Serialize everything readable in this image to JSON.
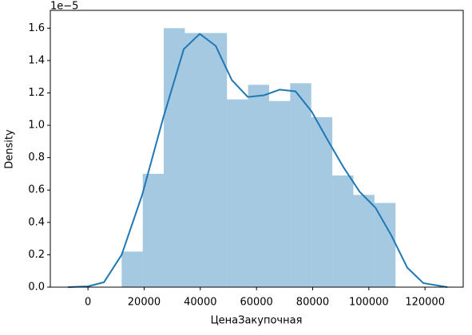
{
  "chart_data": {
    "type": "histogram",
    "x_label": "ЦенаЗакупочная",
    "y_label": "Density",
    "y_offset_label": "1e−5",
    "color": "#1f77b4",
    "bins": [
      12000,
      19500,
      27000,
      34500,
      42000,
      49500,
      57000,
      64500,
      72000,
      79500,
      87000,
      94500,
      102000,
      109500
    ],
    "values": [
      0.22,
      0.7,
      1.6,
      1.57,
      1.57,
      1.16,
      1.25,
      1.15,
      1.26,
      1.05,
      0.69,
      0.57,
      0.52
    ],
    "kde": {
      "color": "#1f77b4",
      "x": [
        -7100,
        0,
        5700,
        12000,
        19300,
        26700,
        34100,
        39800,
        45500,
        51200,
        56900,
        62600,
        68200,
        73900,
        79600,
        85300,
        91000,
        96700,
        102400,
        108000,
        113700,
        119400,
        128000
      ],
      "values": [
        0,
        0.005,
        0.03,
        0.2,
        0.57,
        1.04,
        1.47,
        1.565,
        1.49,
        1.28,
        1.175,
        1.185,
        1.22,
        1.21,
        1.086,
        0.91,
        0.74,
        0.59,
        0.49,
        0.32,
        0.12,
        0.025,
        0
      ]
    },
    "xlim": [
      -13400,
      133600
    ],
    "ylim": [
      0,
      1.71
    ],
    "xticks": [
      0,
      20000,
      40000,
      60000,
      80000,
      100000,
      120000
    ],
    "yticks": [
      {
        "value": 0,
        "label": "0.0"
      },
      {
        "value": 0.2,
        "label": "0.2"
      },
      {
        "value": 0.4,
        "label": "0.4"
      },
      {
        "value": 0.6,
        "label": "0.6"
      },
      {
        "value": 0.8,
        "label": "0.8"
      },
      {
        "value": 1.0,
        "label": "1.0"
      },
      {
        "value": 1.2,
        "label": "1.2"
      },
      {
        "value": 1.4,
        "label": "1.4"
      },
      {
        "value": 1.6,
        "label": "1.6"
      }
    ]
  }
}
